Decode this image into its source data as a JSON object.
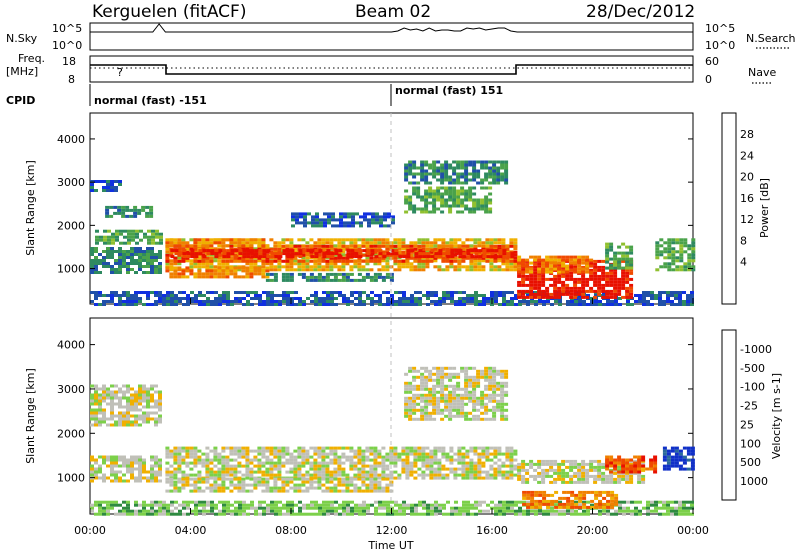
{
  "header": {
    "station": "Kerguelen (fitACF)",
    "beam": "Beam 02",
    "date": "28/Dec/2012"
  },
  "nsky_panel": {
    "left_label": "N.Sky",
    "left_ticks": [
      "10^5",
      "10^0"
    ],
    "right_label": "N.Search",
    "right_ticks": [
      "10^5",
      "10^0"
    ]
  },
  "freq_panel": {
    "left_label_1": "Freq.",
    "left_label_2": "[MHz]",
    "left_ticks": [
      "18",
      "8"
    ],
    "right_label": "Nave",
    "right_ticks": [
      "60",
      "0"
    ],
    "marker": "?"
  },
  "cpid": {
    "label": "CPID",
    "segments": [
      {
        "start_hour": 0,
        "text": "normal (fast) -151"
      },
      {
        "start_hour": 12,
        "text": "normal (fast) 151"
      }
    ]
  },
  "time_axis": {
    "label": "Time UT",
    "ticks": [
      "00:00",
      "04:00",
      "08:00",
      "12:00",
      "16:00",
      "20:00",
      "00:00"
    ]
  },
  "chart_data": [
    {
      "type": "heatmap",
      "title": "",
      "xlabel": "Time UT",
      "ylabel": "Slant Range [km]",
      "xlim": [
        0,
        24
      ],
      "ylim": [
        180,
        4600
      ],
      "y_ticks": [
        1000,
        2000,
        3000,
        4000
      ],
      "colorbar": {
        "label": "Power [dB]",
        "ticks": [
          "4",
          "8",
          "12",
          "16",
          "20",
          "24",
          "28"
        ],
        "colors": [
          "#1030e0",
          "#2050a8",
          "#2e8a60",
          "#4aa24a",
          "#90c030",
          "#f0b000",
          "#f08000",
          "#f04a00",
          "#e81000"
        ]
      },
      "regions": [
        {
          "t0": 0.0,
          "t1": 24.0,
          "r0": 200,
          "r1": 480,
          "level": 1
        },
        {
          "t0": 0.0,
          "t1": 2.8,
          "r0": 900,
          "r1": 1500,
          "level": 2
        },
        {
          "t0": 0.2,
          "t1": 2.8,
          "r0": 1600,
          "r1": 1900,
          "level": 3
        },
        {
          "t0": 0.0,
          "t1": 1.2,
          "r0": 2800,
          "r1": 3050,
          "level": 1
        },
        {
          "t0": 0.6,
          "t1": 2.4,
          "r0": 2200,
          "r1": 2450,
          "level": 2
        },
        {
          "t0": 3.0,
          "t1": 17.0,
          "r0": 1000,
          "r1": 1700,
          "level": 5
        },
        {
          "t0": 3.0,
          "t1": 17.0,
          "r0": 1150,
          "r1": 1550,
          "level": 7
        },
        {
          "t0": 3.2,
          "t1": 16.8,
          "r0": 1250,
          "r1": 1450,
          "level": 8
        },
        {
          "t0": 3.0,
          "t1": 7.0,
          "r0": 1500,
          "r1": 1700,
          "level": 6
        },
        {
          "t0": 3.0,
          "t1": 7.0,
          "r0": 800,
          "r1": 1050,
          "level": 6
        },
        {
          "t0": 7.0,
          "t1": 12.0,
          "r0": 700,
          "r1": 900,
          "level": 2
        },
        {
          "t0": 12.5,
          "t1": 16.5,
          "r0": 3000,
          "r1": 3500,
          "level": 2
        },
        {
          "t0": 12.5,
          "t1": 16.0,
          "r0": 2300,
          "r1": 2900,
          "level": 3
        },
        {
          "t0": 8.0,
          "t1": 12.0,
          "r0": 2000,
          "r1": 2300,
          "level": 1
        },
        {
          "t0": 17.0,
          "t1": 21.5,
          "r0": 300,
          "r1": 1200,
          "level": 8
        },
        {
          "t0": 17.0,
          "t1": 20.0,
          "r0": 900,
          "r1": 1300,
          "level": 6
        },
        {
          "t0": 20.5,
          "t1": 21.5,
          "r0": 1000,
          "r1": 1600,
          "level": 3
        },
        {
          "t0": 22.5,
          "t1": 24.0,
          "r0": 1000,
          "r1": 1700,
          "level": 3
        }
      ]
    },
    {
      "type": "heatmap",
      "title": "",
      "xlabel": "Time UT",
      "ylabel": "Slant Range [km]",
      "xlim": [
        0,
        24
      ],
      "ylim": [
        180,
        4600
      ],
      "y_ticks": [
        1000,
        2000,
        3000,
        4000
      ],
      "colorbar": {
        "label": "Velocity [m s-1]",
        "ticks": [
          "1000",
          "500",
          "100",
          "25",
          "-25",
          "-100",
          "-500",
          "-1000"
        ],
        "colors": [
          "#1030c8",
          "#2a6a9a",
          "#2e8a40",
          "#7cd04a",
          "#c0c0b8",
          "#f0b000",
          "#f08000",
          "#f04a00",
          "#e81000"
        ]
      },
      "regions": [
        {
          "t0": 0.0,
          "t1": 24.0,
          "r0": 200,
          "r1": 480,
          "level": 3
        },
        {
          "t0": 0.0,
          "t1": 2.8,
          "r0": 2200,
          "r1": 3100,
          "level": 4
        },
        {
          "t0": 0.0,
          "t1": 2.8,
          "r0": 900,
          "r1": 1500,
          "level": 4
        },
        {
          "t0": 3.0,
          "t1": 17.0,
          "r0": 1000,
          "r1": 1700,
          "level": 4
        },
        {
          "t0": 3.0,
          "t1": 12.0,
          "r0": 700,
          "r1": 1000,
          "level": 4
        },
        {
          "t0": 12.5,
          "t1": 16.5,
          "r0": 2300,
          "r1": 3500,
          "level": 4
        },
        {
          "t0": 17.0,
          "t1": 22.0,
          "r0": 900,
          "r1": 1400,
          "level": 4
        },
        {
          "t0": 17.2,
          "t1": 21.0,
          "r0": 300,
          "r1": 700,
          "level": 6
        },
        {
          "t0": 20.5,
          "t1": 22.5,
          "r0": 1100,
          "r1": 1500,
          "level": 7
        },
        {
          "t0": 22.8,
          "t1": 24.0,
          "r0": 1200,
          "r1": 1700,
          "level": 0
        }
      ]
    }
  ]
}
